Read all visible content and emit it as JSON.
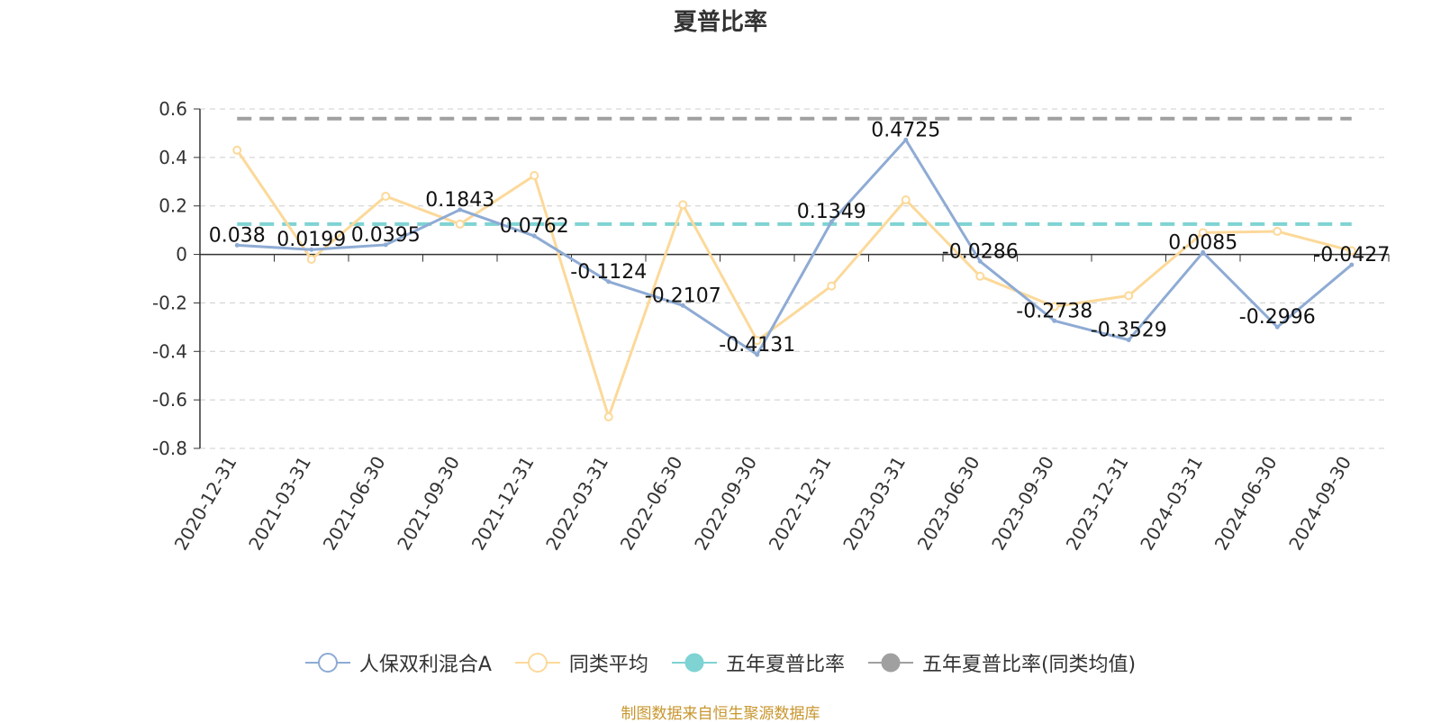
{
  "colors": {
    "fund": "#8eabd4",
    "peer": "#fcd99a",
    "five_year": "#7fd3d3",
    "five_year_peer": "#a0a0a0",
    "grid": "#cccccc",
    "source": "#c8962e"
  },
  "source_note": "制图数据来自恒生聚源数据库",
  "chart_data": {
    "type": "line",
    "title": "夏普比率",
    "xlabel": "",
    "ylabel": "",
    "ylim": [
      -0.8,
      0.6
    ],
    "yticks": [
      0.6,
      0.4,
      0.2,
      0,
      -0.2,
      -0.4,
      -0.6,
      -0.8
    ],
    "ytick_labels": [
      "0.6",
      "0.4",
      "0.2",
      "0",
      "-0.2",
      "-0.4",
      "-0.6",
      "-0.8"
    ],
    "grid": true,
    "legend_position": "bottom",
    "categories": [
      "2020-12-31",
      "2021-03-31",
      "2021-06-30",
      "2021-09-30",
      "2021-12-31",
      "2022-03-31",
      "2022-06-30",
      "2022-09-30",
      "2022-12-31",
      "2023-03-31",
      "2023-06-30",
      "2023-09-30",
      "2023-12-31",
      "2024-03-31",
      "2024-06-30",
      "2024-09-30"
    ],
    "series": [
      {
        "name": "人保双利混合A",
        "color": "#8eabd4",
        "values": [
          0.038,
          0.0199,
          0.0395,
          0.1843,
          0.0762,
          -0.1124,
          -0.2107,
          -0.4131,
          0.1349,
          0.4725,
          -0.0286,
          -0.2738,
          -0.3529,
          0.0085,
          -0.2996,
          -0.0427
        ],
        "labels": [
          "0.038",
          "0.0199",
          "0.0395",
          "0.1843",
          "0.0762",
          "-0.1124",
          "-0.2107",
          "-0.4131",
          "0.1349",
          "0.4725",
          "-0.0286",
          "-0.2738",
          "-0.3529",
          "0.0085",
          "-0.2996",
          "-0.0427"
        ]
      },
      {
        "name": "同类平均",
        "color": "#fcd99a",
        "values": [
          0.43,
          -0.02,
          0.24,
          0.125,
          0.325,
          -0.67,
          0.205,
          -0.355,
          -0.13,
          0.225,
          -0.09,
          -0.215,
          -0.17,
          0.09,
          0.095,
          0.015
        ]
      }
    ],
    "reference_lines": [
      {
        "name": "五年夏普比率",
        "color": "#7fd3d3",
        "value": 0.125
      },
      {
        "name": "五年夏普比率(同类均值)",
        "color": "#a0a0a0",
        "value": 0.56
      }
    ]
  }
}
